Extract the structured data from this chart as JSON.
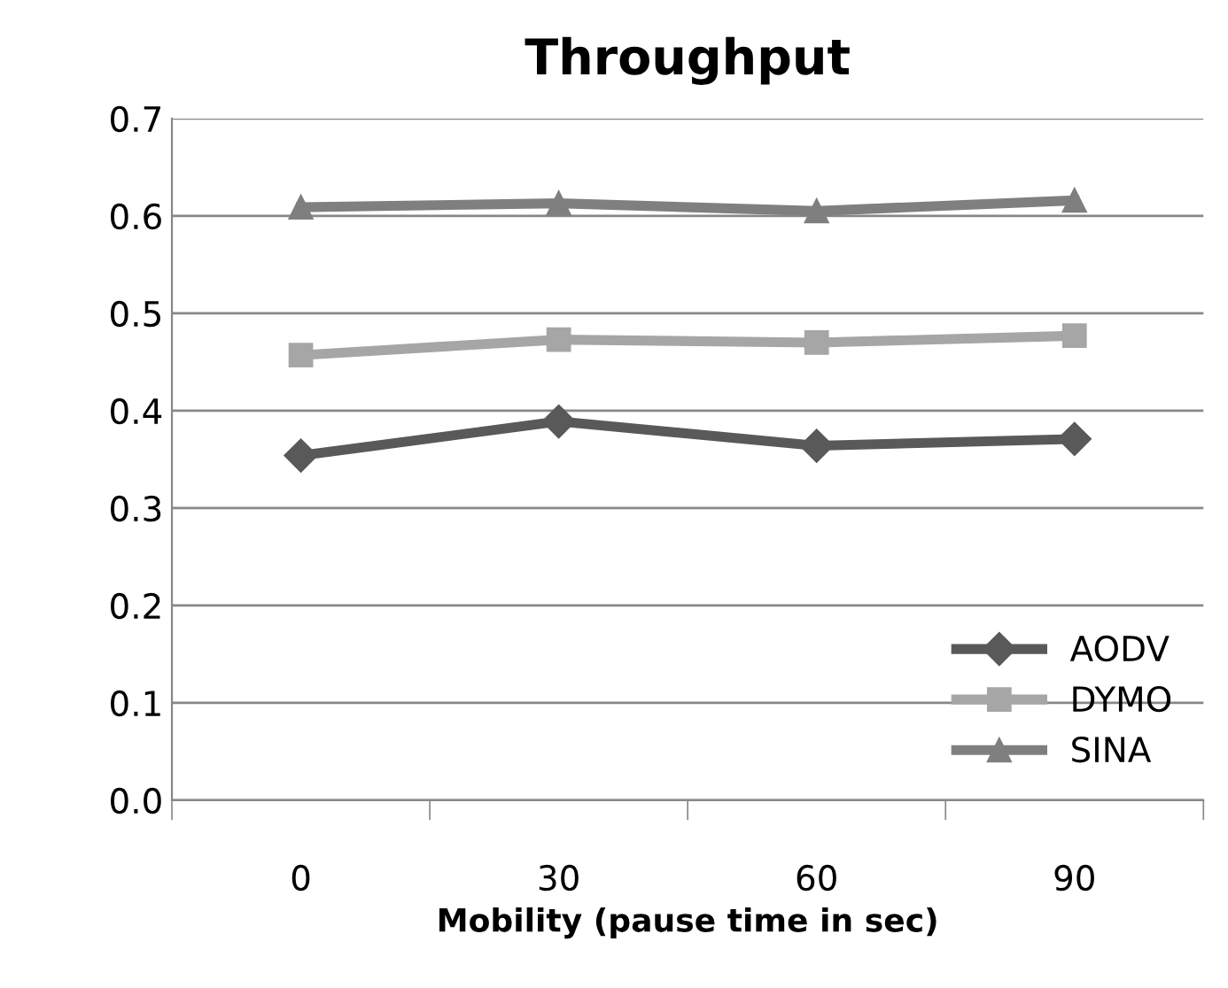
{
  "chart_data": {
    "type": "line",
    "title": "Throughput",
    "xlabel": "Mobility (pause time in sec)",
    "categories": [
      "0",
      "30",
      "60",
      "90"
    ],
    "series": [
      {
        "name": "AODV",
        "color": "#595959",
        "marker": "diamond",
        "values": [
          0.354,
          0.389,
          0.364,
          0.371
        ]
      },
      {
        "name": "DYMO",
        "color": "#a6a6a6",
        "marker": "square",
        "values": [
          0.457,
          0.473,
          0.47,
          0.477
        ]
      },
      {
        "name": "SINA",
        "color": "#7f7f7f",
        "marker": "triangle",
        "values": [
          0.609,
          0.613,
          0.605,
          0.616
        ]
      }
    ],
    "ylim": [
      0,
      0.7
    ],
    "yticks": [
      {
        "value": 0,
        "label": "0.0"
      },
      {
        "value": 0.1,
        "label": "0.1"
      },
      {
        "value": 0.2,
        "label": "0.2"
      },
      {
        "value": 0.3,
        "label": "0.3"
      },
      {
        "value": 0.4,
        "label": "0.4"
      },
      {
        "value": 0.5,
        "label": "0.5"
      },
      {
        "value": 0.6,
        "label": "0.6"
      },
      {
        "value": 0.7,
        "label": "0.7"
      }
    ],
    "grid": "y",
    "legend": "bottom right",
    "line_style": "solid"
  }
}
